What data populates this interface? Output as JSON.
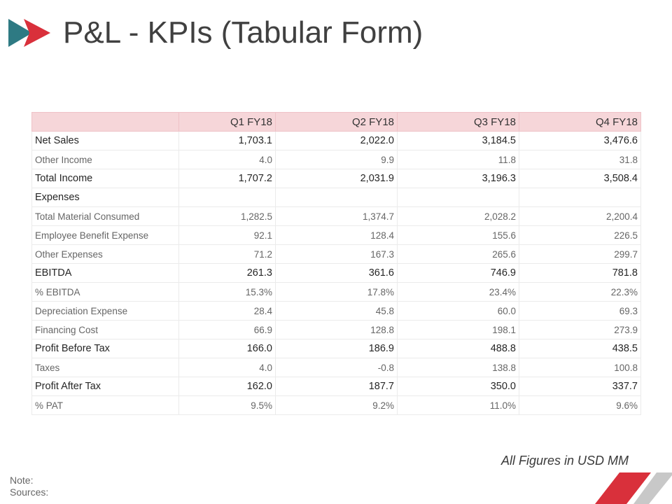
{
  "slide": {
    "title": "P&L - KPIs (Tabular Form)",
    "footnote": "All Figures in USD MM",
    "note_label": "Note:",
    "sources_label": "Sources:",
    "colors": {
      "accent_red": "#d9303b",
      "accent_teal": "#2e7a83",
      "header_fill": "#f6d6d9",
      "deco_gray": "#c8c8c8"
    },
    "logo_icon": "double-arrow-logo-icon"
  },
  "table": {
    "columns": [
      "",
      "Q1 FY18",
      "Q2 FY18",
      "Q3 FY18",
      "Q4 FY18"
    ],
    "rows": [
      {
        "label": "Net Sales",
        "emphasis": "major",
        "values": [
          "1,703.1",
          "2,022.0",
          "3,184.5",
          "3,476.6"
        ]
      },
      {
        "label": "Other Income",
        "emphasis": "minor",
        "values": [
          "4.0",
          "9.9",
          "11.8",
          "31.8"
        ]
      },
      {
        "label": "Total Income",
        "emphasis": "major",
        "values": [
          "1,707.2",
          "2,031.9",
          "3,196.3",
          "3,508.4"
        ]
      },
      {
        "label": "Expenses",
        "emphasis": "major",
        "values": [
          "",
          "",
          "",
          ""
        ]
      },
      {
        "label": "Total Material Consumed",
        "emphasis": "minor",
        "values": [
          "1,282.5",
          "1,374.7",
          "2,028.2",
          "2,200.4"
        ]
      },
      {
        "label": "Employee Benefit Expense",
        "emphasis": "minor",
        "values": [
          "92.1",
          "128.4",
          "155.6",
          "226.5"
        ]
      },
      {
        "label": "Other Expenses",
        "emphasis": "minor",
        "values": [
          "71.2",
          "167.3",
          "265.6",
          "299.7"
        ]
      },
      {
        "label": "EBITDA",
        "emphasis": "major",
        "values": [
          "261.3",
          "361.6",
          "746.9",
          "781.8"
        ]
      },
      {
        "label": "% EBITDA",
        "emphasis": "minor",
        "values": [
          "15.3%",
          "17.8%",
          "23.4%",
          "22.3%"
        ]
      },
      {
        "label": "Depreciation Expense",
        "emphasis": "minor",
        "values": [
          "28.4",
          "45.8",
          "60.0",
          "69.3"
        ]
      },
      {
        "label": "Financing Cost",
        "emphasis": "minor",
        "values": [
          "66.9",
          "128.8",
          "198.1",
          "273.9"
        ]
      },
      {
        "label": "Profit Before Tax",
        "emphasis": "major",
        "values": [
          "166.0",
          "186.9",
          "488.8",
          "438.5"
        ]
      },
      {
        "label": "Taxes",
        "emphasis": "minor",
        "values": [
          "4.0",
          "-0.8",
          "138.8",
          "100.8"
        ]
      },
      {
        "label": "Profit After Tax",
        "emphasis": "major",
        "values": [
          "162.0",
          "187.7",
          "350.0",
          "337.7"
        ]
      },
      {
        "label": "% PAT",
        "emphasis": "minor",
        "values": [
          "9.5%",
          "9.2%",
          "11.0%",
          "9.6%"
        ]
      }
    ]
  }
}
